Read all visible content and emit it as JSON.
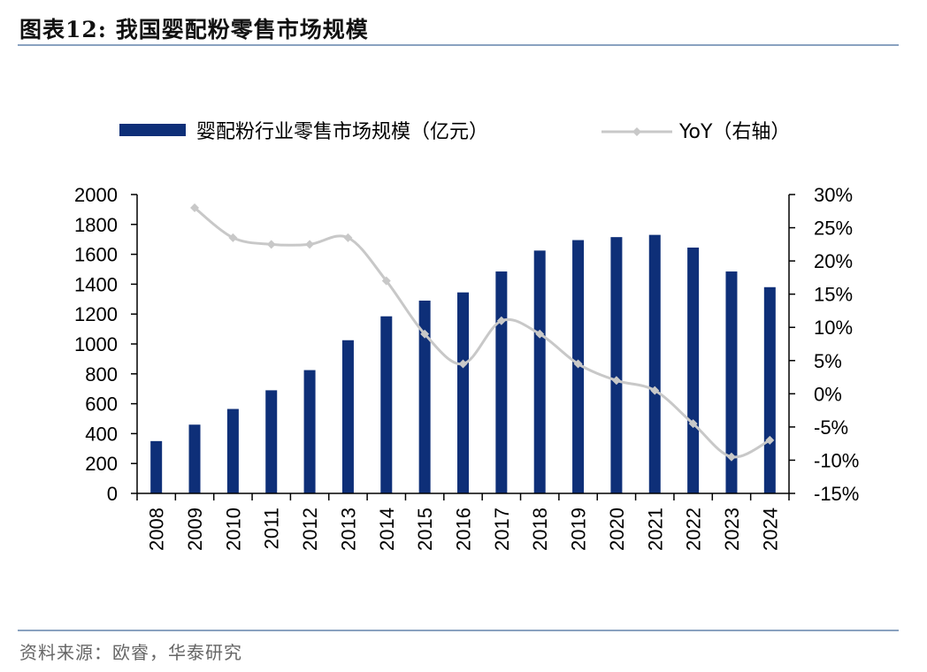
{
  "header": {
    "title": "图表12:  我国婴配粉零售市场规模"
  },
  "footer": {
    "source": "资料来源：欧睿，华泰研究"
  },
  "colors": {
    "bar": "#0e2f78",
    "line": "#c8c8c8",
    "axis": "#000000",
    "rule": "#8aa2c0"
  },
  "chart_data": {
    "type": "bar",
    "title": "我国婴配粉零售市场规模",
    "categories": [
      "2008",
      "2009",
      "2010",
      "2011",
      "2012",
      "2013",
      "2014",
      "2015",
      "2016",
      "2017",
      "2018",
      "2019",
      "2020",
      "2021",
      "2022",
      "2023",
      "2024"
    ],
    "series": [
      {
        "name": "婴配粉行业零售市场规模（亿元）",
        "type": "bar",
        "axis": "left",
        "values": [
          350,
          460,
          565,
          690,
          825,
          1025,
          1185,
          1290,
          1345,
          1485,
          1625,
          1695,
          1715,
          1730,
          1645,
          1485,
          1380
        ]
      },
      {
        "name": "YoY（右轴）",
        "type": "line",
        "axis": "right",
        "unit": "%",
        "values": [
          null,
          28.0,
          23.5,
          22.5,
          22.5,
          23.5,
          17.0,
          9.0,
          4.5,
          11.0,
          9.0,
          4.5,
          2.0,
          0.5,
          -4.5,
          -9.5,
          -7.0
        ]
      }
    ],
    "left_axis": {
      "min": 0,
      "max": 2000,
      "step": 200,
      "tick_labels": [
        "0",
        "200",
        "400",
        "600",
        "800",
        "1000",
        "1200",
        "1400",
        "1600",
        "1800",
        "2000"
      ]
    },
    "right_axis": {
      "min": -15,
      "max": 30,
      "step": 5,
      "tick_labels": [
        "-15%",
        "-10%",
        "-5%",
        "0%",
        "5%",
        "10%",
        "15%",
        "20%",
        "25%",
        "30%"
      ]
    },
    "legend": {
      "placement": "top",
      "bar_label": "婴配粉行业零售市场规模（亿元）",
      "line_label": "YoY（右轴）"
    },
    "grid": false
  }
}
